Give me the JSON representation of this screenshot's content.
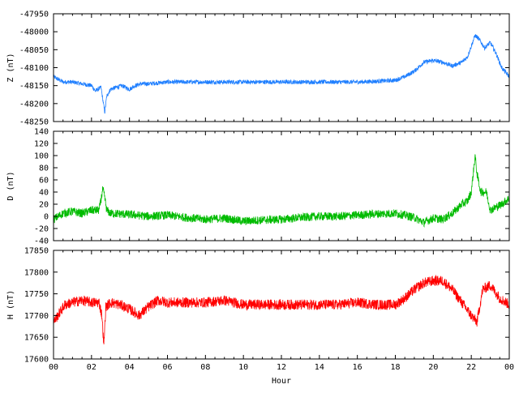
{
  "chart_data": [
    {
      "type": "line",
      "id": "z",
      "ylabel": "Z (nT)",
      "ylim": [
        -48250,
        -47950
      ],
      "yticks": [
        -47950,
        -48000,
        -48050,
        -48100,
        -48150,
        -48200,
        -48250
      ],
      "grid": false,
      "color": "#1f7fff",
      "series": [
        {
          "x": [
            0,
            0.5,
            1,
            1.5,
            2,
            2.2,
            2.5,
            2.6,
            2.7,
            2.8,
            3,
            3.3,
            3.6,
            4,
            4.3,
            4.6,
            5,
            6,
            8,
            10,
            12,
            14,
            16,
            17,
            18,
            18.5,
            19,
            19.5,
            20,
            20.5,
            21,
            21.5,
            21.8,
            22,
            22.2,
            22.4,
            22.7,
            23,
            23.3,
            23.6,
            24
          ],
          "values": [
            -48125,
            -48140,
            -48140,
            -48145,
            -48150,
            -48165,
            -48155,
            -48190,
            -48225,
            -48180,
            -48160,
            -48155,
            -48150,
            -48160,
            -48150,
            -48145,
            -48145,
            -48140,
            -48140,
            -48140,
            -48140,
            -48140,
            -48140,
            -48138,
            -48135,
            -48125,
            -48110,
            -48085,
            -48080,
            -48085,
            -48095,
            -48085,
            -48070,
            -48040,
            -48010,
            -48020,
            -48045,
            -48030,
            -48060,
            -48100,
            -48125
          ],
          "noise": 6
        }
      ]
    },
    {
      "type": "line",
      "id": "d",
      "ylabel": "D (nT)",
      "ylim": [
        -40,
        140
      ],
      "yticks": [
        140,
        120,
        100,
        80,
        60,
        40,
        20,
        0,
        -20,
        -40
      ],
      "grid": false,
      "color": "#00bb00",
      "series": [
        {
          "x": [
            0,
            0.5,
            1,
            1.5,
            2,
            2.4,
            2.6,
            2.7,
            2.8,
            3,
            4,
            5,
            6,
            7,
            8,
            9,
            10,
            11,
            12,
            13,
            14,
            15,
            16,
            17,
            18,
            18.5,
            19,
            19.5,
            20,
            20.5,
            21,
            21.5,
            21.8,
            22,
            22.2,
            22.3,
            22.5,
            22.8,
            23,
            23.3,
            23.6,
            24
          ],
          "values": [
            -5,
            5,
            8,
            5,
            10,
            10,
            45,
            30,
            10,
            5,
            3,
            0,
            2,
            -2,
            -5,
            -3,
            -8,
            -6,
            -5,
            -2,
            0,
            0,
            2,
            4,
            5,
            2,
            -2,
            -10,
            -3,
            -5,
            5,
            20,
            25,
            40,
            100,
            70,
            40,
            40,
            10,
            15,
            20,
            30
          ],
          "noise": 7
        }
      ]
    },
    {
      "type": "line",
      "id": "h",
      "ylabel": "H (nT)",
      "xlabel": "Hour",
      "ylim": [
        17600,
        17850
      ],
      "yticks": [
        17850,
        17800,
        17750,
        17700,
        17650,
        17600
      ],
      "xticks": [
        "00",
        "02",
        "04",
        "06",
        "08",
        "10",
        "12",
        "14",
        "16",
        "18",
        "20",
        "22",
        "00"
      ],
      "grid": false,
      "color": "#ff0000",
      "series": [
        {
          "x": [
            0,
            0.3,
            0.6,
            1,
            1.5,
            2,
            2.4,
            2.55,
            2.65,
            2.75,
            3,
            3.5,
            4,
            4.5,
            5,
            5.5,
            6,
            7,
            8,
            9,
            10,
            11,
            12,
            13,
            14,
            15,
            16,
            17,
            18,
            18.5,
            19,
            19.5,
            20,
            20.5,
            21,
            21.5,
            22,
            22.3,
            22.6,
            23,
            23.5,
            24
          ],
          "values": [
            17685,
            17705,
            17725,
            17730,
            17735,
            17730,
            17730,
            17700,
            17630,
            17720,
            17730,
            17725,
            17715,
            17700,
            17720,
            17735,
            17730,
            17730,
            17730,
            17735,
            17725,
            17725,
            17725,
            17725,
            17725,
            17725,
            17730,
            17725,
            17725,
            17740,
            17760,
            17775,
            17780,
            17780,
            17760,
            17730,
            17700,
            17685,
            17760,
            17770,
            17740,
            17725
          ],
          "noise": 12
        }
      ]
    }
  ]
}
